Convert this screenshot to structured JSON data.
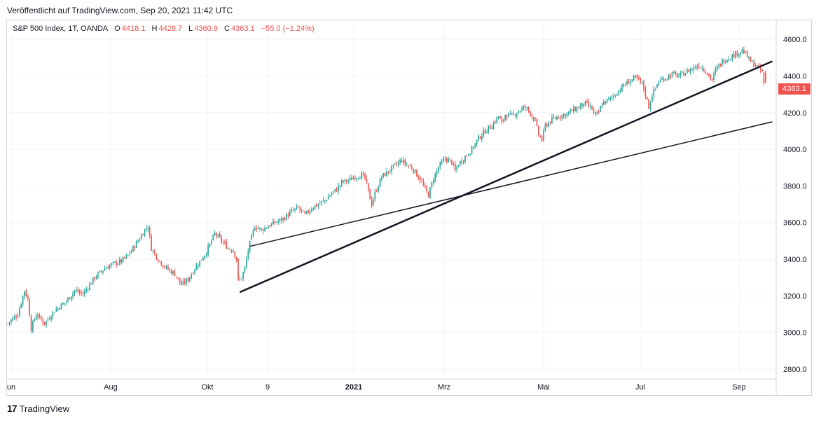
{
  "header": {
    "published": "Veröffentlicht auf TradingView.com, Sep 20, 2021 11:42 UTC"
  },
  "legend": {
    "symbol": "S&P 500 Index, 1T, OANDA",
    "o_label": "O",
    "o_value": "4418.1",
    "h_label": "H",
    "h_value": "4428.7",
    "l_label": "L",
    "l_value": "4360.9",
    "c_label": "C",
    "c_value": "4363.1",
    "change": "−55.0 (−1.24%)"
  },
  "last_price_label": "4363.1",
  "footer": {
    "logo_mark": "17",
    "logo_text": "TradingView"
  },
  "colors": {
    "up": "#26a69a",
    "down": "#ef5350",
    "trendline": "#131722",
    "grid": "#f0f3fa"
  },
  "chart_data": {
    "type": "candlestick",
    "title": "",
    "ylim": [
      2750,
      4700
    ],
    "y_ticks": [
      2800,
      3000,
      3200,
      3400,
      3600,
      3800,
      4000,
      4200,
      4400,
      4600
    ],
    "y_tick_labels": [
      "2800.0",
      "3000.0",
      "3200.0",
      "3400.0",
      "3600.0",
      "3800.0",
      "4000.0",
      "4200.0",
      "4400.0",
      "4600.0"
    ],
    "x_ticks": [
      {
        "label": "un",
        "bold": false
      },
      {
        "label": "Aug",
        "bold": false
      },
      {
        "label": "Okt",
        "bold": false
      },
      {
        "label": "9",
        "bold": false
      },
      {
        "label": "2021",
        "bold": true
      },
      {
        "label": "Mrz",
        "bold": false
      },
      {
        "label": "Mai",
        "bold": false
      },
      {
        "label": "Jul",
        "bold": false
      },
      {
        "label": "Sep",
        "bold": false
      }
    ],
    "trend_path": [
      [
        0,
        3050
      ],
      [
        6,
        3100
      ],
      [
        10,
        3230
      ],
      [
        12,
        3180
      ],
      [
        14,
        3020
      ],
      [
        17,
        3100
      ],
      [
        22,
        3050
      ],
      [
        28,
        3120
      ],
      [
        35,
        3170
      ],
      [
        40,
        3230
      ],
      [
        45,
        3210
      ],
      [
        52,
        3300
      ],
      [
        58,
        3350
      ],
      [
        62,
        3370
      ],
      [
        68,
        3390
      ],
      [
        72,
        3420
      ],
      [
        78,
        3500
      ],
      [
        82,
        3560
      ],
      [
        84,
        3580
      ],
      [
        86,
        3460
      ],
      [
        90,
        3400
      ],
      [
        95,
        3350
      ],
      [
        100,
        3320
      ],
      [
        104,
        3260
      ],
      [
        108,
        3290
      ],
      [
        112,
        3350
      ],
      [
        116,
        3400
      ],
      [
        119,
        3440
      ],
      [
        122,
        3500
      ],
      [
        124,
        3540
      ],
      [
        128,
        3500
      ],
      [
        132,
        3460
      ],
      [
        135,
        3450
      ],
      [
        137,
        3400
      ],
      [
        138,
        3280
      ],
      [
        140,
        3300
      ],
      [
        142,
        3350
      ],
      [
        144,
        3450
      ],
      [
        146,
        3520
      ],
      [
        148,
        3580
      ],
      [
        152,
        3560
      ],
      [
        156,
        3580
      ],
      [
        160,
        3600
      ],
      [
        165,
        3620
      ],
      [
        170,
        3660
      ],
      [
        174,
        3680
      ],
      [
        178,
        3640
      ],
      [
        182,
        3680
      ],
      [
        186,
        3700
      ],
      [
        190,
        3720
      ],
      [
        194,
        3760
      ],
      [
        197,
        3780
      ],
      [
        200,
        3820
      ],
      [
        204,
        3830
      ],
      [
        208,
        3850
      ],
      [
        212,
        3860
      ],
      [
        214,
        3840
      ],
      [
        216,
        3770
      ],
      [
        218,
        3700
      ],
      [
        220,
        3760
      ],
      [
        224,
        3850
      ],
      [
        228,
        3880
      ],
      [
        232,
        3910
      ],
      [
        236,
        3940
      ],
      [
        238,
        3920
      ],
      [
        242,
        3900
      ],
      [
        246,
        3850
      ],
      [
        248,
        3820
      ],
      [
        250,
        3780
      ],
      [
        252,
        3750
      ],
      [
        255,
        3840
      ],
      [
        258,
        3900
      ],
      [
        262,
        3950
      ],
      [
        266,
        3930
      ],
      [
        268,
        3880
      ],
      [
        270,
        3920
      ],
      [
        274,
        3960
      ],
      [
        278,
        4000
      ],
      [
        282,
        4060
      ],
      [
        286,
        4100
      ],
      [
        290,
        4130
      ],
      [
        294,
        4180
      ],
      [
        296,
        4140
      ],
      [
        298,
        4190
      ],
      [
        302,
        4180
      ],
      [
        306,
        4210
      ],
      [
        310,
        4230
      ],
      [
        313,
        4200
      ],
      [
        316,
        4150
      ],
      [
        318,
        4080
      ],
      [
        320,
        4050
      ],
      [
        322,
        4130
      ],
      [
        326,
        4160
      ],
      [
        330,
        4180
      ],
      [
        334,
        4190
      ],
      [
        338,
        4210
      ],
      [
        342,
        4230
      ],
      [
        346,
        4250
      ],
      [
        350,
        4220
      ],
      [
        352,
        4180
      ],
      [
        354,
        4200
      ],
      [
        356,
        4250
      ],
      [
        360,
        4270
      ],
      [
        364,
        4300
      ],
      [
        368,
        4340
      ],
      [
        372,
        4370
      ],
      [
        376,
        4390
      ],
      [
        380,
        4360
      ],
      [
        382,
        4300
      ],
      [
        384,
        4230
      ],
      [
        386,
        4300
      ],
      [
        390,
        4370
      ],
      [
        394,
        4390
      ],
      [
        398,
        4410
      ],
      [
        402,
        4400
      ],
      [
        406,
        4420
      ],
      [
        410,
        4440
      ],
      [
        414,
        4460
      ],
      [
        418,
        4430
      ],
      [
        420,
        4400
      ],
      [
        422,
        4380
      ],
      [
        424,
        4430
      ],
      [
        428,
        4480
      ],
      [
        432,
        4500
      ],
      [
        436,
        4520
      ],
      [
        440,
        4540
      ],
      [
        442,
        4520
      ],
      [
        444,
        4490
      ],
      [
        446,
        4470
      ],
      [
        448,
        4460
      ],
      [
        450,
        4440
      ],
      [
        452,
        4420
      ],
      [
        453,
        4360
      ]
    ],
    "trend_lines": [
      {
        "name": "",
        "from": [
          139,
          3220
        ],
        "to": [
          458,
          4480
        ],
        "width": 2.5
      },
      {
        "name": "",
        "from": [
          145,
          3470
        ],
        "to": [
          458,
          4150
        ],
        "width": 1.5
      }
    ],
    "last": {
      "open": 4418.1,
      "high": 4428.7,
      "low": 4360.9,
      "close": 4363.1
    }
  }
}
